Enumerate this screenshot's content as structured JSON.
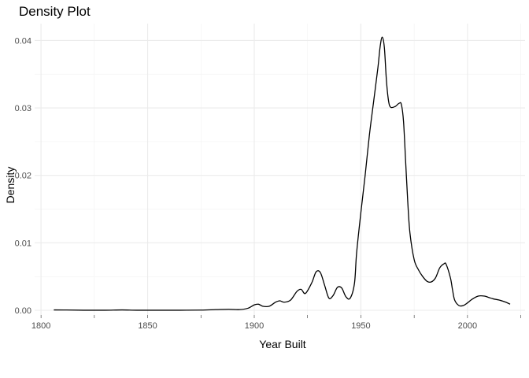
{
  "chart_data": {
    "type": "line",
    "title": "Density Plot",
    "xlabel": "Year Built",
    "ylabel": "Density",
    "xlim": [
      1797,
      2027
    ],
    "ylim": [
      -0.0007,
      0.0425
    ],
    "x_ticks": [
      1800,
      1850,
      1900,
      1950,
      2000
    ],
    "x_minor_ticks": [
      1825,
      1875,
      1925,
      1975,
      2025
    ],
    "y_ticks": [
      0.0,
      0.01,
      0.02,
      0.03,
      0.04
    ],
    "y_tick_labels": [
      "0.00",
      "0.01",
      "0.02",
      "0.03",
      "0.04"
    ],
    "y_minor_ticks": [
      0.005,
      0.015,
      0.025,
      0.035
    ],
    "grid": true,
    "legend": "none",
    "line_color": "#000000",
    "series": [
      {
        "x": [
          1806,
          1812,
          1820,
          1830,
          1838,
          1845,
          1855,
          1865,
          1875,
          1882,
          1888,
          1893,
          1897,
          1900,
          1902,
          1904,
          1907,
          1910,
          1912,
          1914,
          1917,
          1920,
          1922,
          1924,
          1927,
          1929,
          1931,
          1933,
          1935,
          1937,
          1939,
          1941,
          1943,
          1945,
          1947,
          1948,
          1950,
          1952,
          1954,
          1956,
          1958,
          1959,
          1960,
          1961,
          1962,
          1963,
          1964,
          1966,
          1968,
          1969,
          1970,
          1971,
          1972,
          1973,
          1975,
          1977,
          1979,
          1981,
          1983,
          1985,
          1987,
          1989,
          1990,
          1992,
          1993,
          1994,
          1996,
          1998,
          2000,
          2002,
          2005,
          2008,
          2010,
          2012,
          2015,
          2018,
          2020
        ],
        "values": [
          5e-05,
          4e-05,
          1e-05,
          1e-05,
          5e-05,
          1e-05,
          1e-05,
          1e-05,
          3e-05,
          0.0001,
          0.00015,
          0.0001,
          0.0003,
          0.0008,
          0.0009,
          0.0006,
          0.0006,
          0.0012,
          0.0014,
          0.0012,
          0.0015,
          0.0028,
          0.0031,
          0.0025,
          0.0041,
          0.0057,
          0.0056,
          0.0037,
          0.0018,
          0.0022,
          0.0034,
          0.0033,
          0.002,
          0.0018,
          0.004,
          0.0085,
          0.0145,
          0.02,
          0.026,
          0.031,
          0.036,
          0.039,
          0.0405,
          0.039,
          0.034,
          0.031,
          0.0301,
          0.0302,
          0.0307,
          0.0305,
          0.028,
          0.022,
          0.016,
          0.0115,
          0.0075,
          0.006,
          0.005,
          0.0043,
          0.0042,
          0.0048,
          0.0063,
          0.0069,
          0.0068,
          0.0048,
          0.003,
          0.0015,
          0.0007,
          0.0007,
          0.0011,
          0.0016,
          0.0021,
          0.0021,
          0.0019,
          0.0017,
          0.0015,
          0.0012,
          0.0009
        ]
      }
    ]
  }
}
